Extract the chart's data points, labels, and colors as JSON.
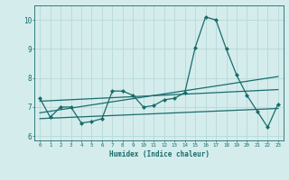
{
  "xlabel": "Humidex (Indice chaleur)",
  "ylabel": "",
  "background_color": "#d4ecec",
  "grid_color": "#b8d8d8",
  "line_color": "#1a6b6b",
  "xlim": [
    -0.5,
    23.5
  ],
  "ylim": [
    5.85,
    10.5
  ],
  "yticks": [
    6,
    7,
    8,
    9,
    10
  ],
  "xticks": [
    0,
    1,
    2,
    3,
    4,
    5,
    6,
    7,
    8,
    9,
    10,
    11,
    12,
    13,
    14,
    15,
    16,
    17,
    18,
    19,
    20,
    21,
    22,
    23
  ],
  "series1": [
    7.3,
    6.65,
    7.0,
    7.0,
    6.45,
    6.5,
    6.6,
    7.55,
    7.55,
    7.4,
    7.0,
    7.05,
    7.25,
    7.3,
    7.5,
    9.05,
    10.1,
    10.0,
    9.0,
    8.1,
    7.4,
    6.85,
    6.3,
    7.1
  ],
  "series2_x": [
    0,
    23
  ],
  "series2_y": [
    6.8,
    8.05
  ],
  "series3_x": [
    0,
    23
  ],
  "series3_y": [
    7.2,
    7.6
  ],
  "series4_x": [
    0,
    23
  ],
  "series4_y": [
    6.6,
    6.95
  ]
}
